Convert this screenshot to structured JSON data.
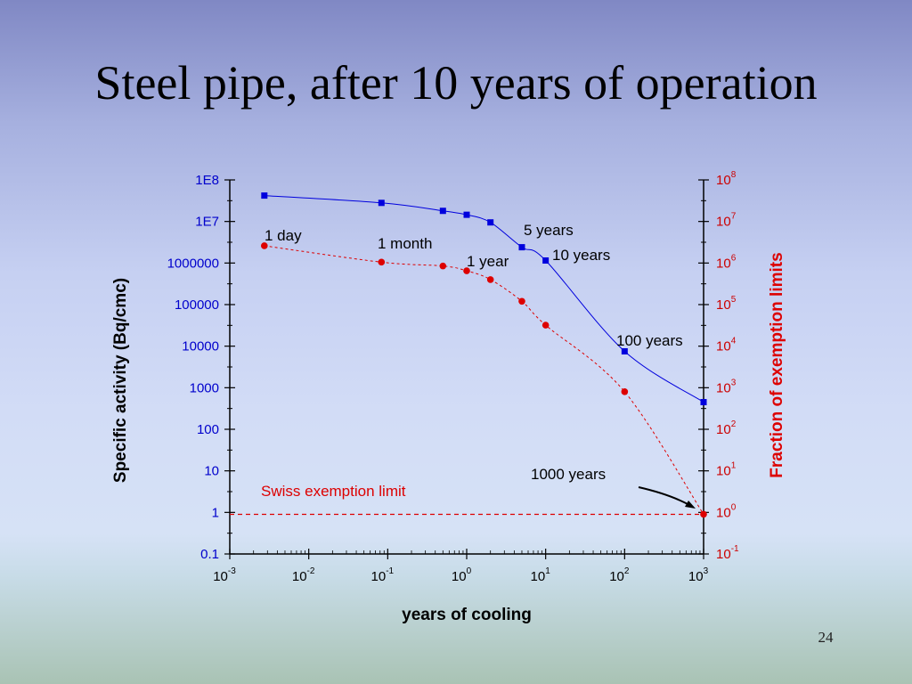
{
  "slide": {
    "title": "Steel pipe, after 10 years of operation",
    "number": "24"
  },
  "chart_data": {
    "type": "scatter",
    "x_label": "years of cooling",
    "x_scale": "log",
    "x_range": [
      0.001,
      1000
    ],
    "x_ticks": [
      {
        "base": "10",
        "exp": "-3"
      },
      {
        "base": "10",
        "exp": "-2"
      },
      {
        "base": "10",
        "exp": "-1"
      },
      {
        "base": "10",
        "exp": "0"
      },
      {
        "base": "10",
        "exp": "1"
      },
      {
        "base": "10",
        "exp": "2"
      },
      {
        "base": "10",
        "exp": "3"
      }
    ],
    "y_left_label": "Specific activity  (Bq/cmc)",
    "y_left_scale": "log",
    "y_left_range": [
      0.1,
      100000000
    ],
    "y_left_ticks": [
      "0.1",
      "1",
      "10",
      "100",
      "1000",
      "10000",
      "100000",
      "1000000",
      "1E7",
      "1E8"
    ],
    "y_right_label": "Fraction of exemption limits",
    "y_right_scale": "log",
    "y_right_range": [
      0.1,
      100000000
    ],
    "y_right_ticks": [
      {
        "base": "10",
        "exp": "-1"
      },
      {
        "base": "10",
        "exp": "0"
      },
      {
        "base": "10",
        "exp": "1"
      },
      {
        "base": "10",
        "exp": "2"
      },
      {
        "base": "10",
        "exp": "3"
      },
      {
        "base": "10",
        "exp": "4"
      },
      {
        "base": "10",
        "exp": "5"
      },
      {
        "base": "10",
        "exp": "6"
      },
      {
        "base": "10",
        "exp": "7"
      },
      {
        "base": "10",
        "exp": "8"
      }
    ],
    "series": [
      {
        "axis": "left",
        "color": "#0000dd",
        "marker": "square",
        "line": "solid",
        "points": [
          {
            "x": 0.00274,
            "y": 42000000
          },
          {
            "x": 0.0833,
            "y": 28000000
          },
          {
            "x": 0.5,
            "y": 18000000
          },
          {
            "x": 1,
            "y": 14500000
          },
          {
            "x": 2,
            "y": 9500000
          },
          {
            "x": 5,
            "y": 2400000
          },
          {
            "x": 10,
            "y": 1150000
          },
          {
            "x": 100,
            "y": 7500
          },
          {
            "x": 1000,
            "y": 450
          }
        ]
      },
      {
        "axis": "right",
        "color": "#dd0000",
        "marker": "circle",
        "line": "dashed",
        "points": [
          {
            "x": 0.00274,
            "y": 2600000
          },
          {
            "x": 0.0833,
            "y": 1050000
          },
          {
            "x": 0.5,
            "y": 850000
          },
          {
            "x": 1,
            "y": 650000
          },
          {
            "x": 2,
            "y": 400000
          },
          {
            "x": 5,
            "y": 120000
          },
          {
            "x": 10,
            "y": 32000
          },
          {
            "x": 100,
            "y": 800
          },
          {
            "x": 1000,
            "y": 0.9
          }
        ]
      }
    ],
    "reference_line": {
      "label": "Swiss exemption limit",
      "axis": "right",
      "y": 0.9,
      "color": "#dd0000",
      "line": "dashed"
    },
    "annotations": [
      {
        "text": "1 day",
        "near_x": 0.00274
      },
      {
        "text": "1 month",
        "near_x": 0.0833
      },
      {
        "text": "1 year",
        "near_x": 1
      },
      {
        "text": "5 years",
        "near_x": 5
      },
      {
        "text": "10 years",
        "near_x": 10
      },
      {
        "text": "100 years",
        "near_x": 100
      },
      {
        "text": "1000 years",
        "near_x": 1000,
        "arrow": true
      }
    ],
    "grid": false
  }
}
